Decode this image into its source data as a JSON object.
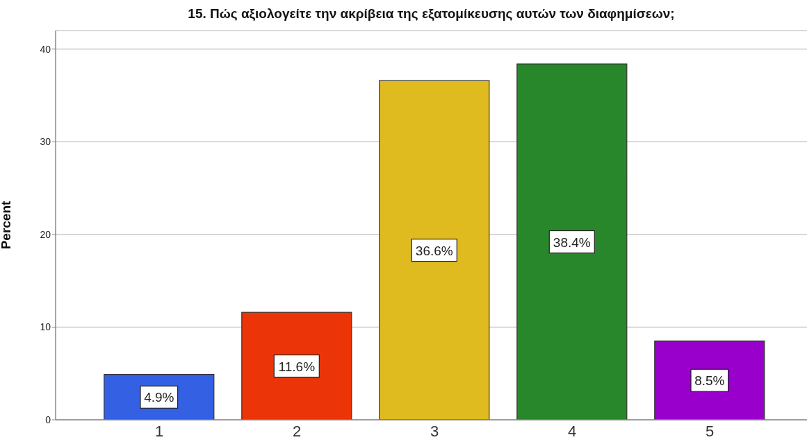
{
  "chart_data": {
    "type": "bar",
    "title": "15. Πώς αξιολογείτε την ακρίβεια της εξατομίκευσης αυτών των διαφημίσεων;",
    "ylabel": "Percent",
    "categories": [
      "1",
      "2",
      "3",
      "4",
      "5"
    ],
    "values": [
      4.9,
      11.6,
      36.6,
      38.4,
      8.5
    ],
    "colors": [
      "#3461e3",
      "#eb3407",
      "#dfbb20",
      "#29872b",
      "#9900cc"
    ],
    "value_labels": [
      "4.9%",
      "11.6%",
      "36.6%",
      "38.4%",
      "8.5%"
    ],
    "ylim": [
      0,
      42
    ],
    "yticks": [
      0,
      10,
      20,
      30,
      40
    ],
    "grid": "y"
  }
}
